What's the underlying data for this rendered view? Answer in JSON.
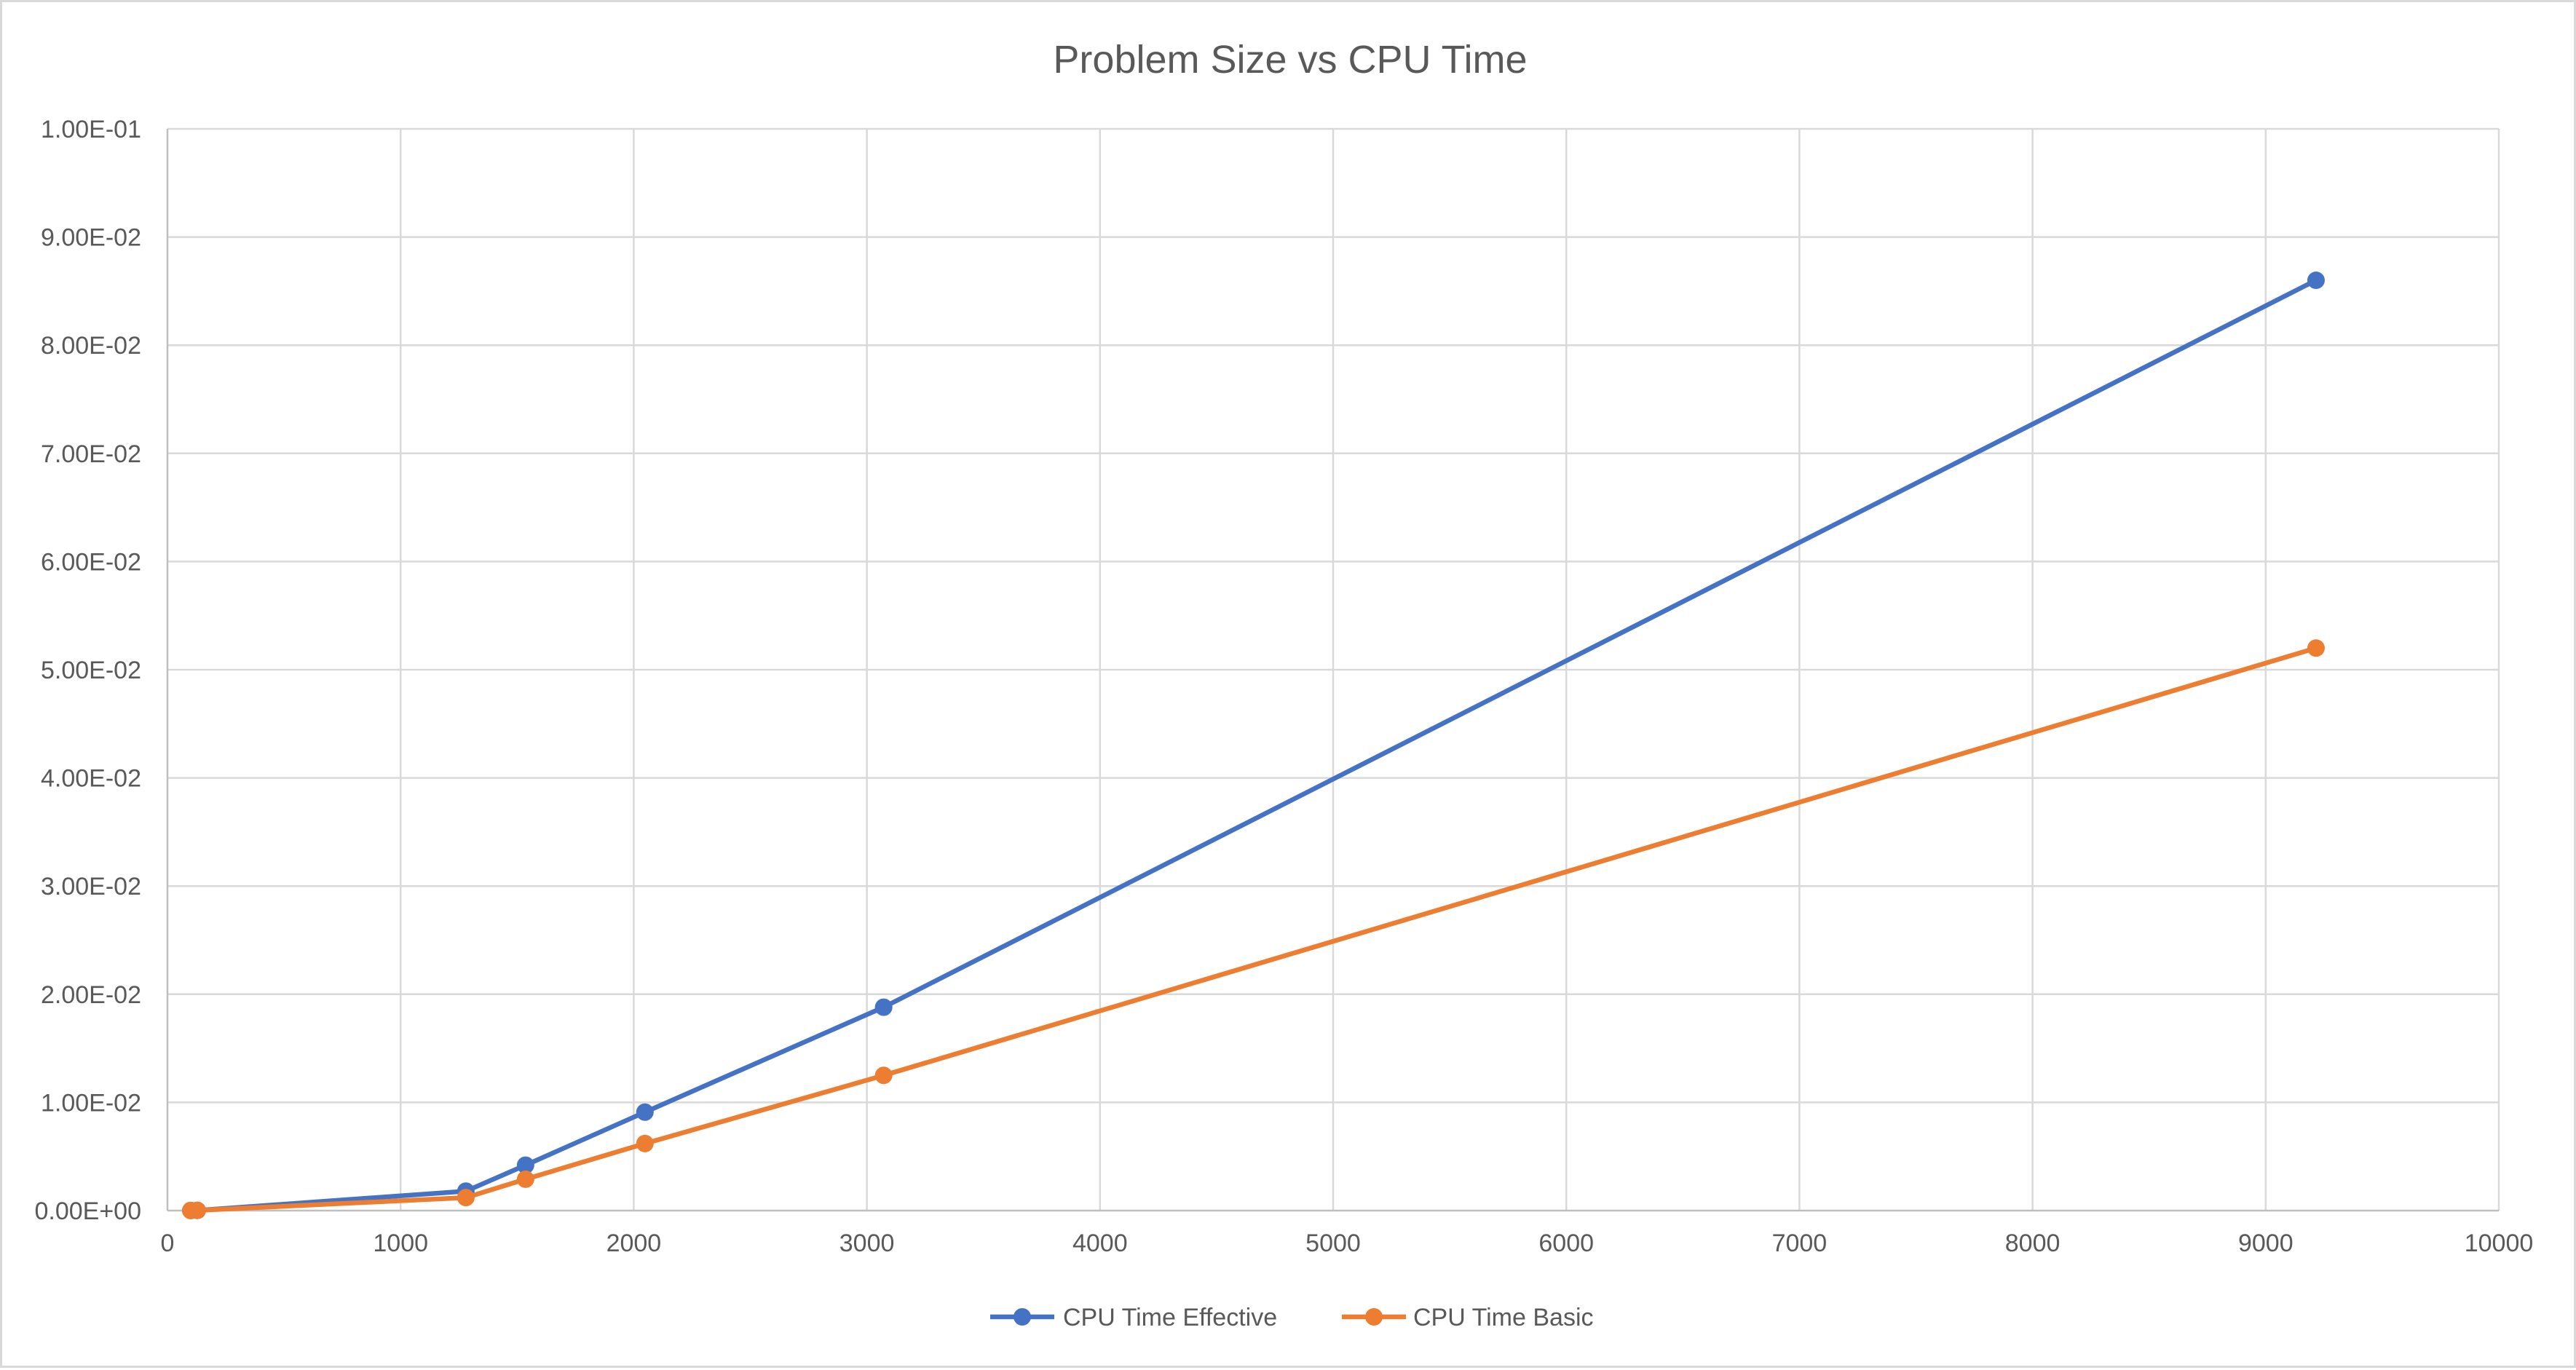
{
  "chart_data": {
    "type": "line",
    "title": "Problem Size vs CPU Time",
    "xlabel": "",
    "ylabel": "",
    "xlim": [
      0,
      10000
    ],
    "ylim": [
      0,
      0.1
    ],
    "x_ticks": [
      0,
      1000,
      2000,
      3000,
      4000,
      5000,
      6000,
      7000,
      8000,
      9000,
      10000
    ],
    "x_tick_labels": [
      "0",
      "1000",
      "2000",
      "3000",
      "4000",
      "5000",
      "6000",
      "7000",
      "8000",
      "9000",
      "10000"
    ],
    "y_ticks": [
      0,
      0.01,
      0.02,
      0.03,
      0.04,
      0.05,
      0.06,
      0.07,
      0.08,
      0.09,
      0.1
    ],
    "y_tick_labels": [
      "0.00E+00",
      "1.00E-02",
      "2.00E-02",
      "3.00E-02",
      "4.00E-02",
      "5.00E-02",
      "6.00E-02",
      "7.00E-02",
      "8.00E-02",
      "9.00E-02",
      "1.00E-01"
    ],
    "grid": true,
    "legend_position": "bottom",
    "series": [
      {
        "name": "CPU Time Effective",
        "color": "#4472c4",
        "x": [
          100,
          128,
          1280,
          1536,
          2048,
          3072,
          9216
        ],
        "y": [
          1e-05,
          2e-05,
          0.0018,
          0.0042,
          0.0091,
          0.0188,
          0.086
        ]
      },
      {
        "name": "CPU Time Basic",
        "color": "#ed7d31",
        "x": [
          100,
          128,
          1280,
          1536,
          2048,
          3072,
          9216
        ],
        "y": [
          1e-05,
          2e-05,
          0.0012,
          0.0029,
          0.0062,
          0.0125,
          0.052
        ]
      }
    ]
  }
}
